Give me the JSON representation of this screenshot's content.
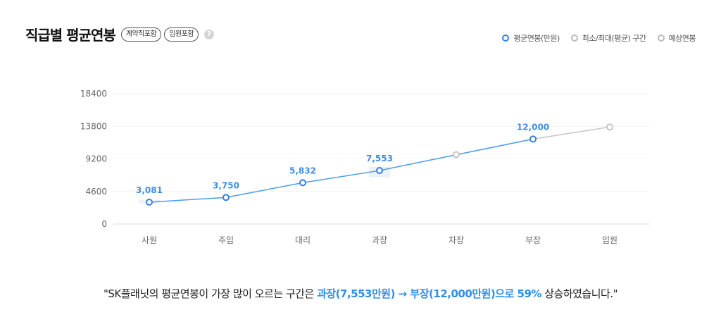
{
  "header": {
    "title": "직급별 평균연봉",
    "tags": [
      "계약직포함",
      "임원포함"
    ],
    "help": "?"
  },
  "legend": [
    {
      "label": "평균연봉(만원)",
      "color": "#2f80ed"
    },
    {
      "label": "최소/최대(평균) 구간",
      "color": "#bbbbbb"
    },
    {
      "label": "예상연봉",
      "color": "#bbbbbb"
    }
  ],
  "chart_data": {
    "type": "line",
    "categories": [
      "사원",
      "주임",
      "대리",
      "과장",
      "차장",
      "부장",
      "임원"
    ],
    "yticks": [
      0,
      4600,
      9200,
      13800,
      18400
    ],
    "ylim": [
      0,
      18400
    ],
    "grid": true,
    "legend_position": "top-right",
    "series": [
      {
        "name": "평균연봉(만원)",
        "color": "#4a9df0",
        "values": [
          3081,
          3750,
          5832,
          7553,
          null,
          12000,
          null
        ],
        "labels": [
          "3,081",
          "3,750",
          "5,832",
          "7,553",
          "",
          "12,000",
          ""
        ]
      },
      {
        "name": "예상연봉",
        "color": "#c8c8c8",
        "values": [
          null,
          null,
          null,
          7553,
          9800,
          12000,
          13700
        ]
      }
    ],
    "ranges": [
      {
        "category": "사원",
        "min": 2900,
        "max": 3400
      },
      {
        "category": "과장",
        "min": 6600,
        "max": 8100
      }
    ]
  },
  "summary": {
    "prefix": "\"SK플래닛의 평균연봉이 가장 많이 오르는 구간은 ",
    "highlight": "과장(7,553만원) → 부장(12,000만원)으로 59%",
    "suffix": " 상승하였습니다.\""
  }
}
